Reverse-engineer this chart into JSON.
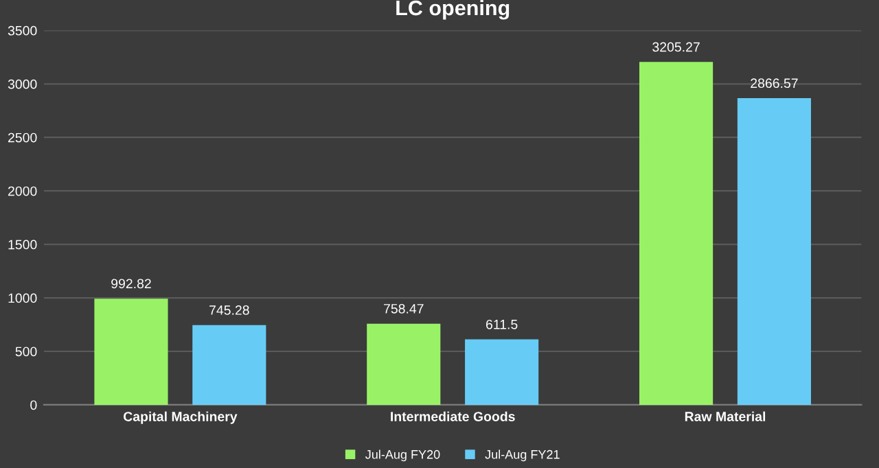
{
  "chart_data": {
    "type": "bar",
    "title": "LC opening",
    "categories": [
      "Capital Machinery",
      "Intermediate Goods",
      "Raw Material"
    ],
    "series": [
      {
        "name": "Jul-Aug FY20",
        "color": "#99f266",
        "values": [
          992.82,
          758.47,
          3205.27
        ]
      },
      {
        "name": "Jul-Aug FY21",
        "color": "#66ccf5",
        "values": [
          745.28,
          611.5,
          2866.57
        ]
      }
    ],
    "ylim": [
      0,
      3500
    ],
    "yticks": [
      0,
      500,
      1000,
      1500,
      2000,
      2500,
      3000,
      3500
    ],
    "grid": "y",
    "legend": "bottom",
    "data_labels": true
  }
}
